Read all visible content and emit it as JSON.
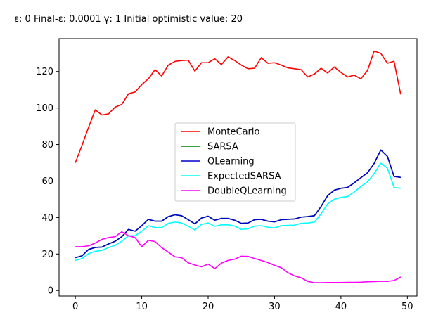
{
  "chart_data": {
    "type": "line",
    "title": "ε: 0    Final-ε: 0.0001    γ: 1    Initial optimistic value: 20",
    "xlabel": "",
    "ylabel": "",
    "xlim": [
      -2.45,
      51.45
    ],
    "ylim": [
      -3,
      138
    ],
    "xticks": [
      0,
      10,
      20,
      30,
      40,
      50
    ],
    "yticks": [
      0,
      20,
      40,
      60,
      80,
      100,
      120
    ],
    "grid": false,
    "legend_position": "center-right",
    "x": [
      0,
      1,
      2,
      3,
      4,
      5,
      6,
      7,
      8,
      9,
      10,
      11,
      12,
      13,
      14,
      15,
      16,
      17,
      18,
      19,
      20,
      21,
      22,
      23,
      24,
      25,
      26,
      27,
      28,
      29,
      30,
      31,
      32,
      33,
      34,
      35,
      36,
      37,
      38,
      39,
      40,
      41,
      42,
      43,
      44,
      45,
      46,
      47,
      48,
      49
    ],
    "series": [
      {
        "name": "MonteCarlo",
        "color": "#ff0000",
        "values": [
          70,
          79.5,
          89.5,
          99,
          96.2,
          96.8,
          100.5,
          102,
          107.8,
          108.8,
          112.8,
          116,
          121,
          117.5,
          123.5,
          125.5,
          126,
          126.2,
          120.2,
          124.8,
          124.8,
          127,
          123.8,
          128,
          126,
          123.5,
          121.5,
          121.8,
          127.6,
          124.5,
          124.8,
          123.5,
          122,
          121.5,
          121,
          117,
          118.6,
          121.8,
          119.2,
          122.5,
          119.5,
          117,
          118,
          116,
          120.5,
          131.2,
          130,
          124.5,
          125.6,
          107.5
        ]
      },
      {
        "name": "SARSA",
        "color": "#008000",
        "values": [
          18,
          19,
          22.5,
          23.6,
          23.8,
          25.5,
          27,
          29.5,
          33.5,
          32.5,
          35.5,
          39,
          38,
          38,
          40.5,
          41.5,
          41,
          38.8,
          36.5,
          39.7,
          40.7,
          38.5,
          39.5,
          39.5,
          38.5,
          36.8,
          37,
          38.8,
          39,
          38,
          37.6,
          38.8,
          39,
          39.2,
          40.2,
          40.5,
          41,
          46,
          52,
          55,
          56,
          56.5,
          59,
          61.8,
          64.5,
          69.6,
          77,
          73.5,
          62.5,
          62
        ]
      },
      {
        "name": "QLearning",
        "color": "#0000cc",
        "values": [
          18,
          19,
          22.5,
          23.6,
          23.8,
          25.5,
          27,
          29.5,
          33.5,
          32.5,
          35.5,
          39,
          38,
          38,
          40.5,
          41.5,
          41,
          38.8,
          36.5,
          39.7,
          40.7,
          38.5,
          39.5,
          39.5,
          38.5,
          36.8,
          37,
          38.8,
          39,
          38,
          37.6,
          38.8,
          39,
          39.2,
          40.2,
          40.5,
          41,
          46,
          52,
          55,
          56,
          56.5,
          59,
          61.8,
          64.5,
          69.6,
          77,
          73.5,
          62.5,
          62
        ]
      },
      {
        "name": "ExpectedSARSA",
        "color": "#00ffff",
        "values": [
          16.5,
          17.5,
          20.2,
          21.5,
          22,
          23.5,
          24.8,
          27,
          30,
          30,
          32.5,
          35.5,
          34.5,
          34.5,
          36.8,
          37.5,
          37,
          35.2,
          33.2,
          36.2,
          37,
          35.2,
          36,
          36,
          35.3,
          33.5,
          33.8,
          35.3,
          35.5,
          34.7,
          34.3,
          35.5,
          35.7,
          35.8,
          36.8,
          37,
          37.5,
          42,
          47.5,
          50,
          51,
          51.5,
          54,
          57,
          59.5,
          64,
          69.8,
          67,
          56.5,
          56
        ]
      },
      {
        "name": "DoubleQLearning",
        "color": "#ff00ff",
        "values": [
          24,
          24,
          24.5,
          26,
          28,
          29,
          29.5,
          32.2,
          30,
          29,
          24,
          27.5,
          26.8,
          23.5,
          21,
          18.5,
          18,
          15.2,
          14,
          13,
          14.5,
          12,
          15,
          16.5,
          17.2,
          18.8,
          18.7,
          17.5,
          16.5,
          15.3,
          13.8,
          12.5,
          9.8,
          8,
          7,
          5,
          4.3,
          4.3,
          4.4,
          4.4,
          4.4,
          4.5,
          4.5,
          4.6,
          4.8,
          4.9,
          5.1,
          5,
          5.5,
          7.4
        ]
      }
    ]
  }
}
